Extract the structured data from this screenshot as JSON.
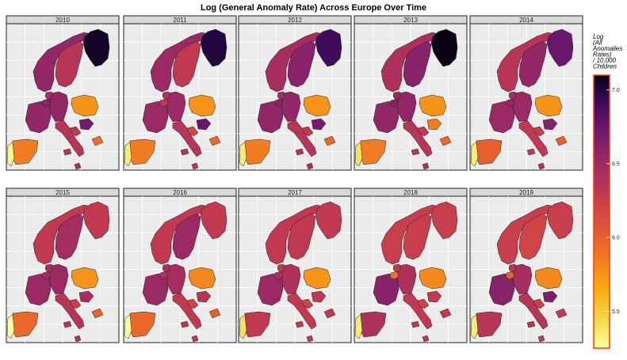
{
  "chart_data": {
    "type": "heatmap",
    "title": "Log (General Anomaly Rate) Across Europe Over Time",
    "facets": [
      "2010",
      "2011",
      "2012",
      "2013",
      "2014",
      "2015",
      "2016",
      "2017",
      "2018",
      "2019"
    ],
    "regions": [
      "Norway",
      "Sweden",
      "Finland",
      "Poland",
      "Germany",
      "France",
      "Belgium",
      "Netherlands",
      "Italy",
      "Spain",
      "Portugal",
      "Hungary",
      "Croatia",
      "Malta",
      "Ireland"
    ],
    "values": {
      "2010": {
        "Norway": 6.55,
        "Sweden": 6.35,
        "Finland": 7.05,
        "Poland": 5.75,
        "Germany": 6.55,
        "France": 6.55,
        "Belgium": 6.6,
        "Netherlands": 6.45,
        "Italy": 6.35,
        "Spain": 5.85,
        "Portugal": 5.3,
        "Hungary": 6.7,
        "Croatia": 6.3,
        "Malta": 5.9,
        "Ireland": 6.4
      },
      "2011": {
        "Norway": 6.5,
        "Sweden": 6.3,
        "Finland": 7.0,
        "Poland": 5.75,
        "Germany": 6.5,
        "France": 6.5,
        "Belgium": 6.3,
        "Netherlands": 6.4,
        "Italy": 6.35,
        "Spain": 5.85,
        "Portugal": 5.35,
        "Hungary": 6.75,
        "Croatia": 6.2,
        "Malta": 5.95,
        "Ireland": 6.3
      },
      "2012": {
        "Norway": 6.45,
        "Sweden": 6.6,
        "Finland": 6.9,
        "Poland": 5.75,
        "Germany": 6.55,
        "France": 6.55,
        "Belgium": 6.6,
        "Netherlands": 6.45,
        "Italy": 6.35,
        "Spain": 5.85,
        "Portugal": 5.35,
        "Hungary": 6.7,
        "Croatia": 6.3,
        "Malta": 5.95,
        "Ireland": 6.4
      },
      "2013": {
        "Norway": 6.4,
        "Sweden": 6.6,
        "Finland": 7.1,
        "Poland": 5.75,
        "Germany": 6.55,
        "France": 6.55,
        "Belgium": 6.6,
        "Netherlands": 6.5,
        "Italy": 6.35,
        "Spain": 5.85,
        "Portugal": 5.4,
        "Hungary": 5.85,
        "Croatia": 6.3,
        "Malta": 5.95,
        "Ireland": 6.4
      },
      "2014": {
        "Norway": 6.35,
        "Sweden": 6.55,
        "Finland": 6.75,
        "Poland": 5.75,
        "Germany": 6.5,
        "France": 6.5,
        "Belgium": 6.55,
        "Netherlands": 6.45,
        "Italy": 6.3,
        "Spain": 6.0,
        "Portugal": 5.35,
        "Hungary": 6.6,
        "Croatia": 6.25,
        "Malta": 6.0,
        "Ireland": 6.35
      },
      "2015": {
        "Norway": 6.3,
        "Sweden": 6.45,
        "Finland": 6.3,
        "Poland": 5.75,
        "Germany": 6.5,
        "France": 6.5,
        "Belgium": 6.45,
        "Netherlands": 6.4,
        "Italy": 6.35,
        "Spain": 5.95,
        "Portugal": 5.25,
        "Hungary": 6.45,
        "Croatia": 6.25,
        "Malta": 6.0,
        "Ireland": 6.35
      },
      "2016": {
        "Norway": 6.3,
        "Sweden": 6.5,
        "Finland": 6.3,
        "Poland": 5.8,
        "Germany": 6.45,
        "France": 6.5,
        "Belgium": 6.4,
        "Netherlands": 6.4,
        "Italy": 6.3,
        "Spain": 5.95,
        "Portugal": 5.25,
        "Hungary": 6.35,
        "Croatia": 6.2,
        "Malta": 6.0,
        "Ireland": 6.3
      },
      "2017": {
        "Norway": 6.3,
        "Sweden": 6.3,
        "Finland": 6.3,
        "Poland": 5.75,
        "Germany": 6.4,
        "France": 6.5,
        "Belgium": 6.4,
        "Netherlands": 6.3,
        "Italy": 6.3,
        "Spain": 6.3,
        "Portugal": 5.4,
        "Hungary": 6.3,
        "Croatia": 6.2,
        "Malta": 6.3,
        "Ireland": 6.3
      },
      "2018": {
        "Norway": 6.25,
        "Sweden": 6.25,
        "Finland": 6.25,
        "Poland": 5.8,
        "Germany": 6.4,
        "France": 6.6,
        "Belgium": 5.9,
        "Netherlands": 6.3,
        "Italy": 6.3,
        "Spain": 6.4,
        "Portugal": 5.35,
        "Hungary": 6.3,
        "Croatia": 6.2,
        "Malta": 6.3,
        "Ireland": 6.3
      },
      "2019": {
        "Norway": 6.25,
        "Sweden": 6.2,
        "Finland": 6.25,
        "Poland": 5.8,
        "Germany": 6.45,
        "France": 6.6,
        "Belgium": 6.0,
        "Netherlands": 6.35,
        "Italy": 6.35,
        "Spain": 6.35,
        "Portugal": 5.35,
        "Hungary": 6.65,
        "Croatia": 6.25,
        "Malta": 6.3,
        "Ireland": 6.3
      }
    },
    "legend": {
      "title_lines": [
        "Log",
        "(All",
        "Anomalies",
        "Rates)",
        "/ 10,000",
        "Children"
      ],
      "ticks": [
        "7.0",
        "6.5",
        "6.0",
        "5.5"
      ],
      "tick_values": [
        7.0,
        6.5,
        6.0,
        5.5
      ],
      "range": [
        5.25,
        7.1
      ],
      "colormap": "inferno",
      "position": "right"
    },
    "grid": true
  }
}
